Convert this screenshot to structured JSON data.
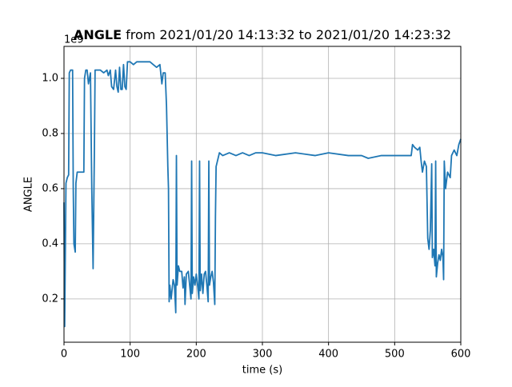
{
  "chart_data": {
    "type": "line",
    "title_bold": "ANGLE",
    "title": "from 2021/01/20 14:13:32 to 2021/01/20 14:23:32",
    "xlabel": "time (s)",
    "ylabel": "ANGLE",
    "y_offset_label": "1e9",
    "color": "#1f77b4",
    "grid": true,
    "xlim": [
      0,
      600
    ],
    "xticks": [
      0,
      100,
      200,
      300,
      400,
      500,
      600
    ],
    "ylim": [
      0.043,
      1.116
    ],
    "yticks": [
      0.2,
      0.4,
      0.6,
      0.8,
      1.0
    ],
    "x": [
      0,
      1,
      3,
      5,
      7,
      8,
      10,
      13,
      14,
      15,
      17,
      18,
      20,
      25,
      30,
      31,
      33,
      35,
      37,
      40,
      42,
      44,
      46,
      47,
      55,
      60,
      65,
      67,
      70,
      72,
      75,
      78,
      80,
      82,
      84,
      86,
      88,
      90,
      92,
      94,
      96,
      100,
      105,
      110,
      120,
      130,
      135,
      140,
      145,
      148,
      150,
      153,
      155,
      157,
      158,
      159,
      160,
      162,
      165,
      167,
      169,
      170,
      171,
      173,
      175,
      178,
      180,
      182,
      183,
      185,
      188,
      190,
      192,
      193,
      194,
      196,
      198,
      200,
      202,
      204,
      205,
      206,
      208,
      210,
      212,
      214,
      216,
      218,
      219,
      220,
      222,
      224,
      226,
      228,
      229,
      230,
      232,
      235,
      240,
      250,
      260,
      270,
      280,
      290,
      300,
      320,
      350,
      380,
      400,
      430,
      450,
      460,
      480,
      500,
      520,
      525,
      527,
      530,
      535,
      538,
      540,
      542,
      545,
      548,
      550,
      552,
      554,
      556,
      557,
      559,
      561,
      562,
      563,
      565,
      567,
      569,
      571,
      573,
      574,
      575,
      577,
      580,
      584,
      586,
      590,
      594,
      597,
      600
    ],
    "values": [
      0.55,
      0.1,
      0.62,
      0.64,
      0.65,
      1.02,
      1.03,
      1.03,
      0.6,
      0.4,
      0.37,
      0.62,
      0.66,
      0.66,
      0.66,
      1.0,
      1.03,
      1.03,
      0.98,
      1.02,
      0.6,
      0.31,
      0.75,
      1.03,
      1.03,
      1.02,
      1.03,
      1.01,
      1.03,
      0.97,
      0.96,
      1.03,
      0.97,
      0.95,
      1.04,
      0.96,
      0.96,
      1.05,
      0.97,
      0.96,
      1.06,
      1.06,
      1.05,
      1.06,
      1.06,
      1.06,
      1.05,
      1.04,
      1.05,
      0.98,
      1.02,
      1.02,
      0.9,
      0.68,
      0.6,
      0.19,
      0.25,
      0.2,
      0.27,
      0.25,
      0.15,
      0.72,
      0.25,
      0.32,
      0.3,
      0.3,
      0.24,
      0.28,
      0.18,
      0.29,
      0.3,
      0.25,
      0.2,
      0.7,
      0.22,
      0.28,
      0.25,
      0.29,
      0.25,
      0.2,
      0.7,
      0.23,
      0.29,
      0.22,
      0.29,
      0.3,
      0.25,
      0.19,
      0.7,
      0.25,
      0.28,
      0.3,
      0.26,
      0.18,
      0.5,
      0.68,
      0.7,
      0.73,
      0.72,
      0.73,
      0.72,
      0.73,
      0.72,
      0.73,
      0.73,
      0.72,
      0.73,
      0.72,
      0.73,
      0.72,
      0.72,
      0.71,
      0.72,
      0.72,
      0.72,
      0.72,
      0.76,
      0.75,
      0.74,
      0.75,
      0.7,
      0.66,
      0.7,
      0.68,
      0.42,
      0.38,
      0.45,
      0.69,
      0.35,
      0.38,
      0.32,
      0.7,
      0.28,
      0.33,
      0.36,
      0.34,
      0.38,
      0.35,
      0.27,
      0.7,
      0.6,
      0.66,
      0.64,
      0.72,
      0.74,
      0.72,
      0.76,
      0.78
    ]
  }
}
